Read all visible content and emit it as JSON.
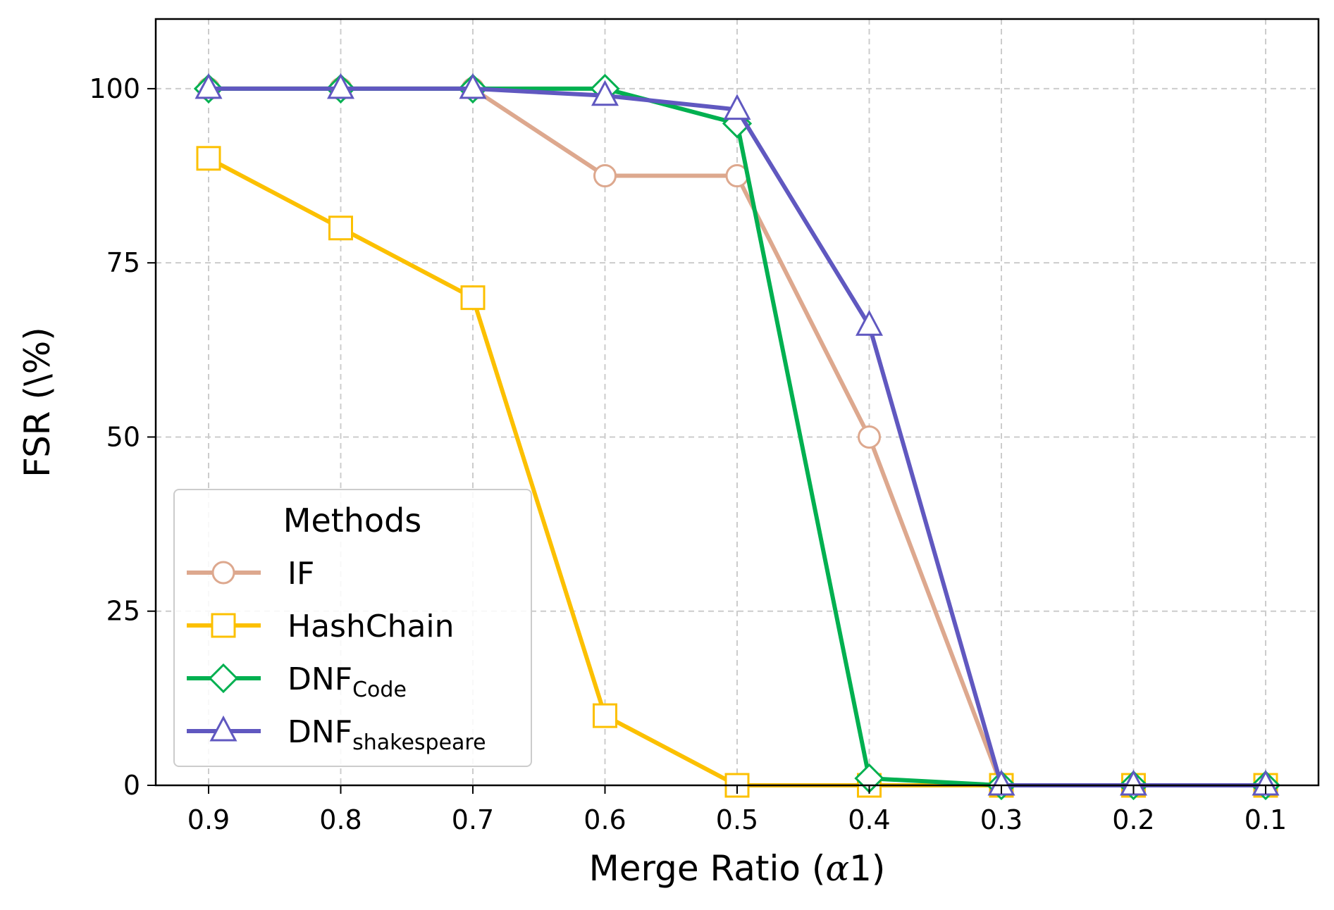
{
  "chart_data": {
    "type": "line",
    "title": "",
    "xlabel": "Merge Ratio (α1)",
    "xlabel_main": "Merge Ratio (",
    "xlabel_symbol": "α",
    "xlabel_tail": "1)",
    "ylabel": "FSR (\\%)",
    "x": [
      0.9,
      0.8,
      0.7,
      0.6,
      0.5,
      0.4,
      0.3,
      0.2,
      0.1
    ],
    "x_tick_labels": [
      "0.9",
      "0.8",
      "0.7",
      "0.6",
      "0.5",
      "0.4",
      "0.3",
      "0.2",
      "0.1"
    ],
    "xlim": [
      0.94,
      0.06
    ],
    "ylim": [
      0,
      110
    ],
    "y_ticks": [
      0,
      25,
      50,
      75,
      100
    ],
    "y_tick_labels": [
      "0",
      "25",
      "50",
      "75",
      "100"
    ],
    "grid": true,
    "legend": {
      "title": "Methods",
      "location": "lower-left"
    },
    "series": [
      {
        "name": "IF",
        "label_main": "IF",
        "label_sub": "",
        "color": "#dda88e",
        "marker": "circle",
        "values": [
          100,
          100,
          100,
          87.5,
          87.5,
          50,
          0,
          0,
          0
        ]
      },
      {
        "name": "HashChain",
        "label_main": "HashChain",
        "label_sub": "",
        "color": "#fcc000",
        "marker": "square",
        "values": [
          90,
          80,
          70,
          10,
          0,
          0,
          0,
          0,
          0
        ]
      },
      {
        "name": "DNF_Code",
        "label_main": "DNF",
        "label_sub": "Code",
        "color": "#00b050",
        "marker": "diamond",
        "values": [
          100,
          100,
          100,
          100,
          95,
          1,
          0,
          0,
          0
        ]
      },
      {
        "name": "DNF_shakespeare",
        "label_main": "DNF",
        "label_sub": "shakespeare",
        "color": "#6058c0",
        "marker": "triangle",
        "values": [
          100,
          100,
          100,
          99,
          97,
          66,
          0,
          0,
          0
        ]
      }
    ]
  }
}
